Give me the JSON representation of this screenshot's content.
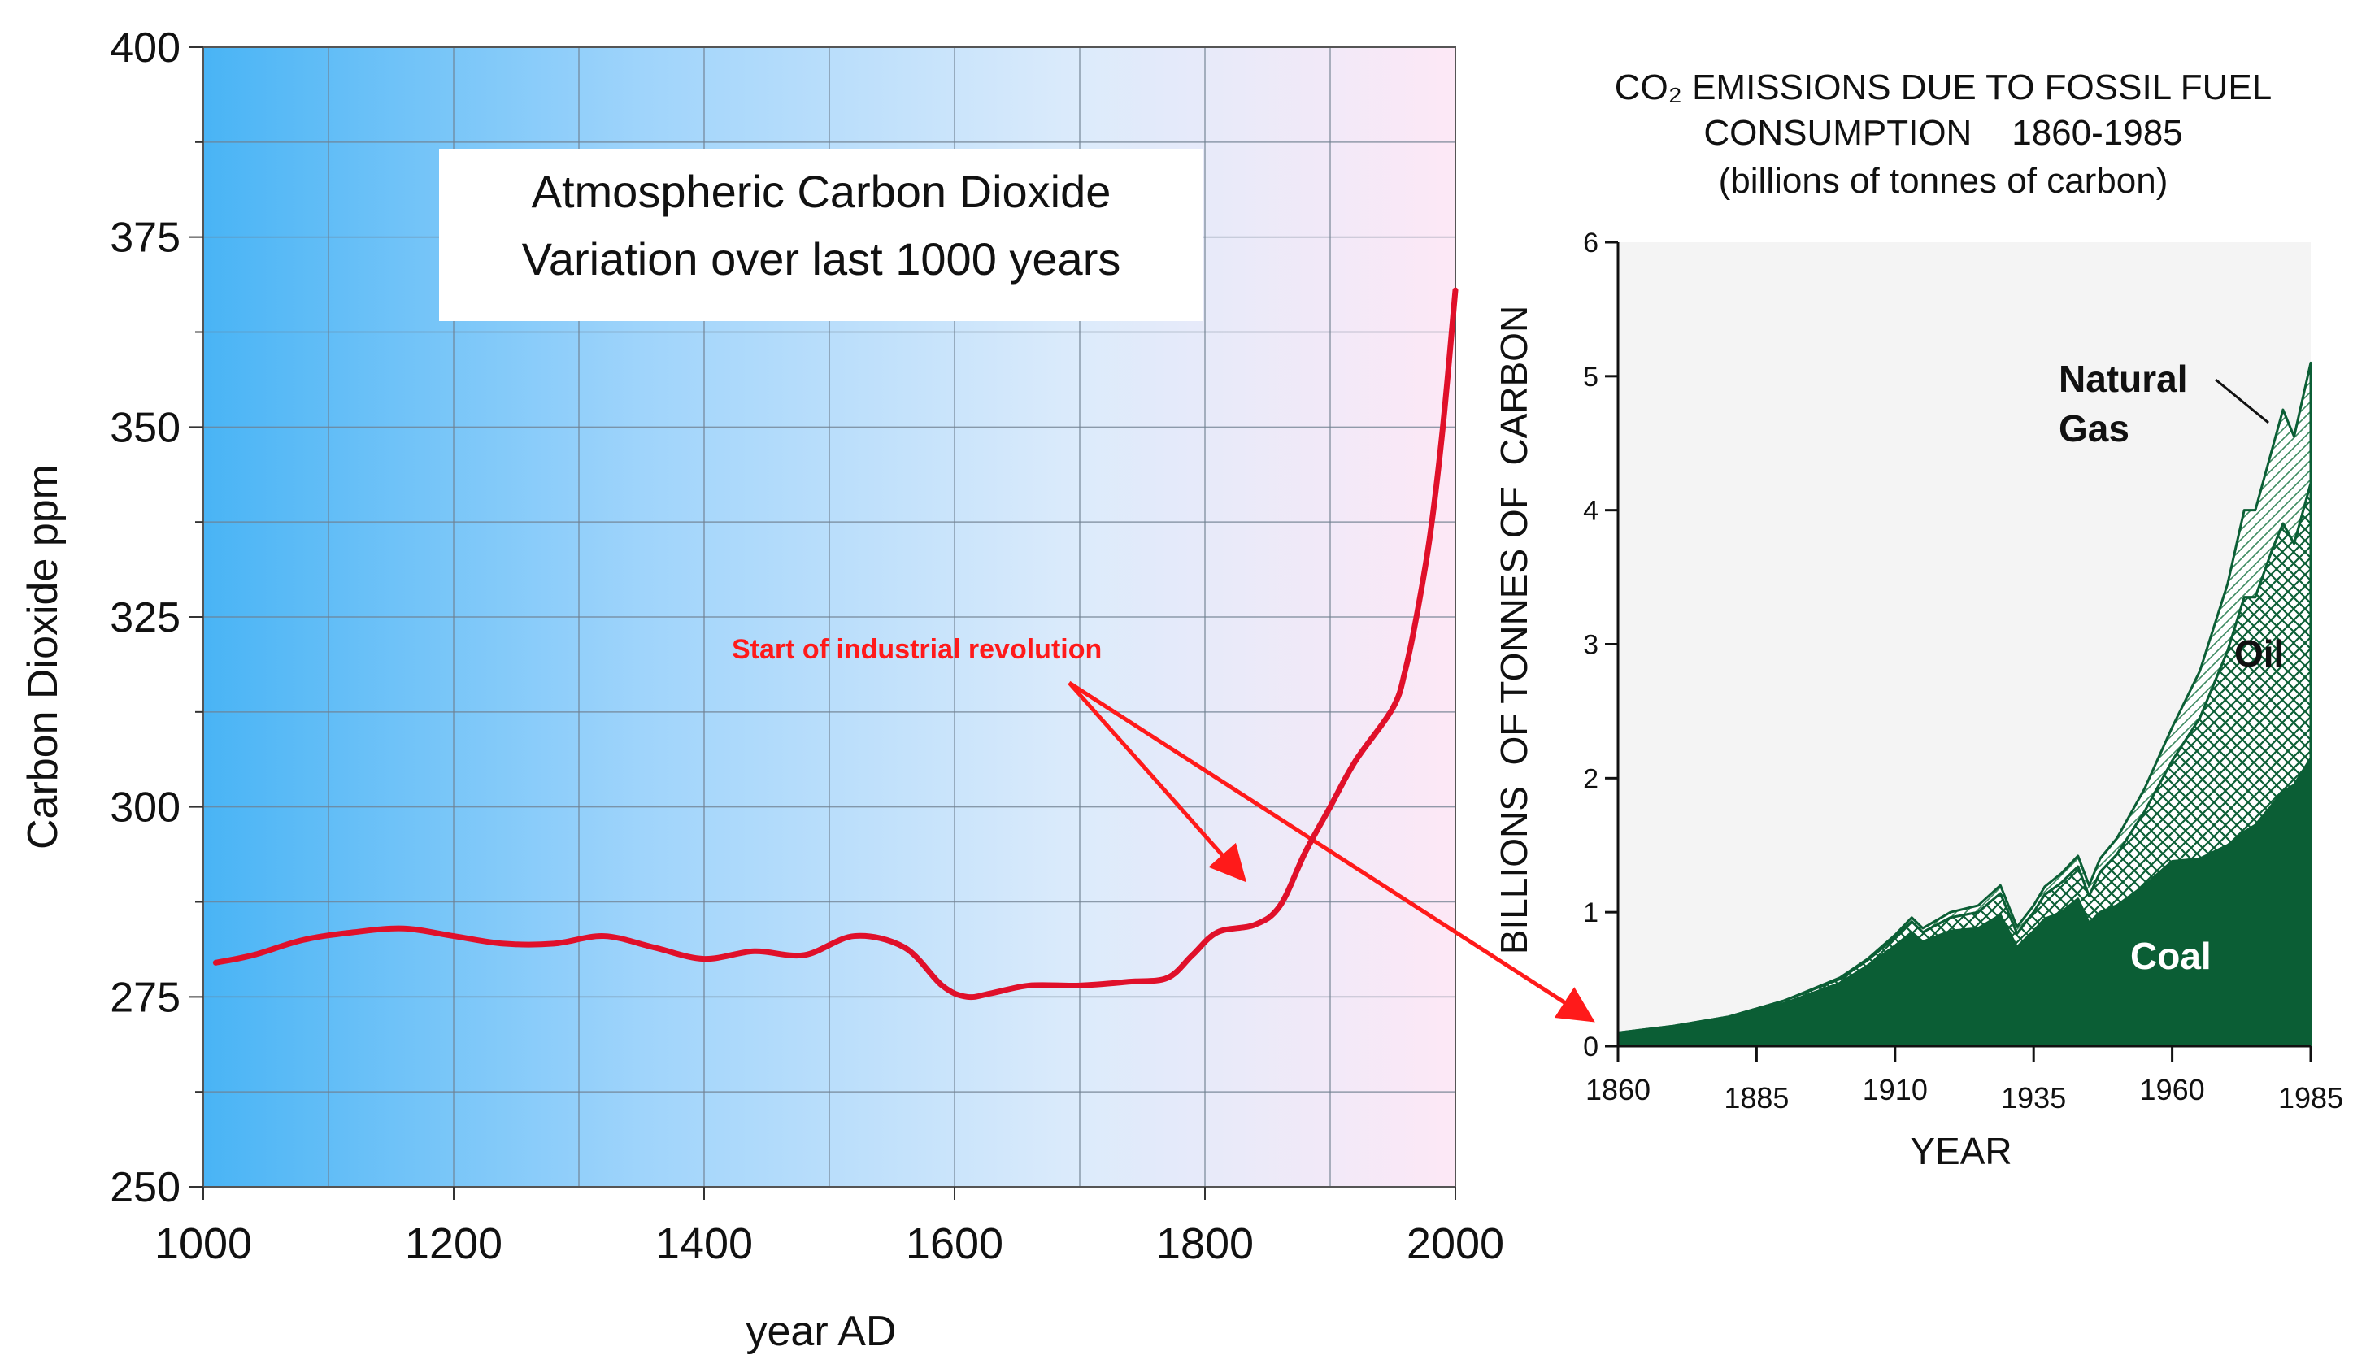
{
  "chart_data": [
    {
      "type": "line",
      "title": "Atmospheric Carbon Dioxide",
      "subtitle": "Variation over last 1000 years",
      "xlabel": "year AD",
      "ylabel": "Carbon Dioxide ppm",
      "xlim": [
        1000,
        2000
      ],
      "ylim": [
        250,
        400
      ],
      "xticks": [
        1000,
        1200,
        1400,
        1600,
        1800,
        2000
      ],
      "yticks": [
        250,
        275,
        300,
        325,
        350,
        375,
        400
      ],
      "grid": true,
      "background": "blue-to-pink gradient",
      "annotation": "Start of industrial revolution",
      "series": [
        {
          "name": "CO2",
          "color": "#e0102a",
          "x": [
            1010,
            1040,
            1080,
            1120,
            1160,
            1200,
            1240,
            1280,
            1320,
            1360,
            1400,
            1440,
            1480,
            1520,
            1560,
            1590,
            1610,
            1630,
            1660,
            1700,
            1740,
            1770,
            1790,
            1810,
            1840,
            1860,
            1880,
            1900,
            1920,
            1950,
            1960,
            1970,
            1980,
            1990,
            2000
          ],
          "values": [
            279.5,
            280.5,
            282.5,
            283.5,
            284.0,
            283.0,
            282.0,
            282.0,
            283.0,
            281.5,
            280.0,
            281.0,
            280.5,
            283.0,
            281.5,
            276.5,
            275.0,
            275.5,
            276.5,
            276.5,
            277.0,
            277.5,
            280.5,
            283.5,
            284.5,
            287.0,
            294.0,
            300.0,
            306.0,
            313.0,
            318.0,
            326.0,
            336.0,
            350.0,
            368.0
          ]
        }
      ]
    },
    {
      "type": "area",
      "title": "CO₂ EMISSIONS DUE TO FOSSIL FUEL",
      "title_line2": "CONSUMPTION    1860-1985",
      "subtitle": "(billions of tonnes of carbon)",
      "xlabel": "YEAR",
      "ylabel": "BILLIONS  OF TONNES OF  CARBON",
      "xlim": [
        1860,
        1985
      ],
      "ylim": [
        0,
        6
      ],
      "xticks": [
        1860,
        1885,
        1910,
        1935,
        1960,
        1985
      ],
      "yticks": [
        0,
        1,
        2,
        3,
        4,
        5,
        6
      ],
      "stacked": true,
      "x": [
        1860,
        1870,
        1880,
        1890,
        1900,
        1905,
        1910,
        1913,
        1915,
        1920,
        1925,
        1929,
        1932,
        1935,
        1937,
        1940,
        1943,
        1945,
        1947,
        1950,
        1955,
        1960,
        1965,
        1970,
        1973,
        1975,
        1978,
        1980,
        1982,
        1985
      ],
      "series": [
        {
          "name": "Coal",
          "color": "#0b5e35",
          "values": [
            0.1,
            0.15,
            0.22,
            0.32,
            0.47,
            0.6,
            0.75,
            0.85,
            0.78,
            0.86,
            0.88,
            0.98,
            0.74,
            0.86,
            0.95,
            1.0,
            1.1,
            0.92,
            1.0,
            1.05,
            1.2,
            1.38,
            1.4,
            1.5,
            1.6,
            1.65,
            1.8,
            1.9,
            1.95,
            2.15
          ]
        },
        {
          "name": "Oil",
          "color": "#0b5e35",
          "values": [
            0.0,
            0.0,
            0.0,
            0.02,
            0.03,
            0.04,
            0.06,
            0.08,
            0.07,
            0.1,
            0.12,
            0.16,
            0.1,
            0.14,
            0.18,
            0.22,
            0.24,
            0.2,
            0.3,
            0.38,
            0.55,
            0.75,
            1.05,
            1.45,
            1.75,
            1.7,
            1.9,
            2.0,
            1.8,
            2.05
          ]
        },
        {
          "name": "Natural Gas",
          "color": "#0b5e35",
          "values": [
            0.0,
            0.0,
            0.0,
            0.0,
            0.01,
            0.01,
            0.02,
            0.03,
            0.03,
            0.04,
            0.05,
            0.06,
            0.05,
            0.05,
            0.06,
            0.07,
            0.08,
            0.08,
            0.1,
            0.12,
            0.17,
            0.25,
            0.35,
            0.5,
            0.65,
            0.65,
            0.75,
            0.85,
            0.8,
            0.9
          ]
        }
      ],
      "labels": {
        "natural_gas_line1": "Natural",
        "natural_gas_line2": "Gas",
        "oil": "Oil",
        "coal": "Coal"
      }
    }
  ]
}
